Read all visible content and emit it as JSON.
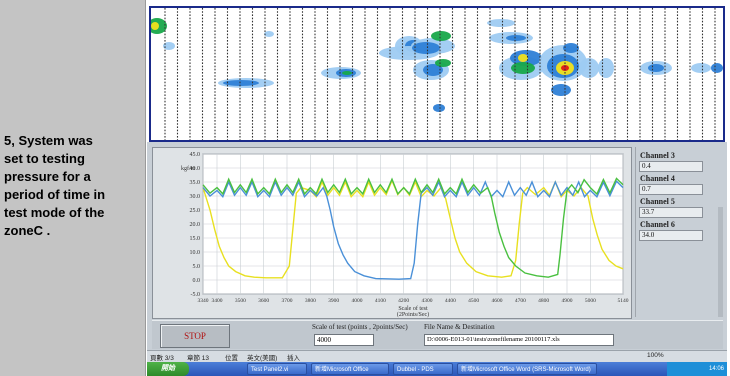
{
  "caption": {
    "lines": [
      "5, System was",
      "set to testing",
      "pressure for a",
      "period of time in",
      "test mode of the",
      "zoneC ."
    ]
  },
  "heatmap": {
    "colors": {
      "low": "#9ecbf2",
      "mid": "#2e7fd6",
      "high": "#18a84a",
      "peak_yellow": "#f2e21c",
      "peak_red": "#e01818",
      "border": "#1a2a8a"
    }
  },
  "chart_data": {
    "type": "line",
    "title": "",
    "ylabel": "kgf/m",
    "xlabel": "Scale of test",
    "xlabel_sub": "(2Points/Sec)",
    "xlim": [
      3340,
      5140
    ],
    "ylim": [
      -5,
      45
    ],
    "x_ticks": [
      3340,
      3400,
      3500,
      3600,
      3700,
      3800,
      3900,
      4000,
      4100,
      4200,
      4300,
      4400,
      4500,
      4600,
      4700,
      4800,
      4900,
      5000,
      5140
    ],
    "y_ticks": [
      -5.0,
      0.0,
      5.0,
      10.0,
      15.0,
      20.0,
      25.0,
      30.0,
      35.0,
      40.0,
      45.0
    ],
    "grid": true,
    "series": [
      {
        "color": "#e8e020",
        "points": [
          [
            3340,
            33
          ],
          [
            3355,
            29
          ],
          [
            3370,
            25
          ],
          [
            3390,
            18
          ],
          [
            3410,
            12
          ],
          [
            3430,
            8
          ],
          [
            3450,
            5
          ],
          [
            3480,
            3
          ],
          [
            3520,
            1.5
          ],
          [
            3560,
            1
          ],
          [
            3610,
            0.8
          ],
          [
            3680,
            0.8
          ],
          [
            3710,
            5
          ],
          [
            3725,
            18
          ],
          [
            3740,
            31
          ],
          [
            3760,
            33
          ],
          [
            3800,
            32
          ],
          [
            3900,
            33
          ],
          [
            4000,
            32
          ],
          [
            4100,
            33
          ],
          [
            4200,
            33
          ],
          [
            4300,
            32
          ],
          [
            4360,
            33
          ],
          [
            4380,
            29
          ],
          [
            4400,
            22
          ],
          [
            4420,
            15
          ],
          [
            4440,
            10
          ],
          [
            4470,
            6
          ],
          [
            4510,
            3
          ],
          [
            4560,
            1.5
          ],
          [
            4620,
            1
          ],
          [
            4660,
            1.5
          ],
          [
            4680,
            7
          ],
          [
            4695,
            20
          ],
          [
            4710,
            31
          ],
          [
            4730,
            33
          ],
          [
            4800,
            33
          ],
          [
            4900,
            32
          ],
          [
            4960,
            33
          ],
          [
            4990,
            30
          ],
          [
            5010,
            22
          ],
          [
            5030,
            16
          ],
          [
            5050,
            11
          ],
          [
            5080,
            7
          ],
          [
            5110,
            5
          ],
          [
            5140,
            4
          ]
        ]
      },
      {
        "color": "#4a90d8",
        "points": [
          [
            3340,
            33
          ],
          [
            3400,
            32
          ],
          [
            3500,
            33
          ],
          [
            3600,
            32
          ],
          [
            3700,
            33
          ],
          [
            3800,
            32
          ],
          [
            3855,
            33
          ],
          [
            3870,
            30
          ],
          [
            3885,
            25
          ],
          [
            3900,
            19
          ],
          [
            3920,
            13
          ],
          [
            3940,
            9
          ],
          [
            3960,
            6
          ],
          [
            3990,
            3
          ],
          [
            4030,
            1.5
          ],
          [
            4080,
            0.5
          ],
          [
            4180,
            0.3
          ],
          [
            4230,
            0.5
          ],
          [
            4245,
            6
          ],
          [
            4260,
            20
          ],
          [
            4275,
            31
          ],
          [
            4300,
            33
          ],
          [
            4400,
            32
          ],
          [
            4500,
            33
          ],
          [
            4600,
            32
          ],
          [
            4700,
            33
          ],
          [
            4800,
            32
          ],
          [
            4900,
            33
          ],
          [
            5000,
            32
          ],
          [
            5140,
            33
          ]
        ]
      },
      {
        "color": "#4ac040",
        "points": [
          [
            3340,
            34
          ],
          [
            3400,
            33
          ],
          [
            3500,
            34
          ],
          [
            3600,
            33
          ],
          [
            3700,
            34
          ],
          [
            3800,
            33
          ],
          [
            3900,
            34
          ],
          [
            4000,
            33
          ],
          [
            4100,
            34
          ],
          [
            4200,
            33
          ],
          [
            4300,
            34
          ],
          [
            4400,
            33
          ],
          [
            4500,
            34
          ],
          [
            4560,
            33
          ],
          [
            4575,
            30
          ],
          [
            4590,
            24
          ],
          [
            4610,
            17
          ],
          [
            4630,
            12
          ],
          [
            4650,
            8
          ],
          [
            4680,
            5
          ],
          [
            4720,
            2.5
          ],
          [
            4770,
            1.5
          ],
          [
            4820,
            1
          ],
          [
            4860,
            2
          ],
          [
            4870,
            9
          ],
          [
            4885,
            22
          ],
          [
            4900,
            32
          ],
          [
            4920,
            34
          ],
          [
            5000,
            33
          ],
          [
            5140,
            34
          ]
        ]
      }
    ]
  },
  "channels": [
    {
      "label": "Channel 3",
      "value": "0.4"
    },
    {
      "label": "Channel 4",
      "value": "0.7"
    },
    {
      "label": "Channel 5",
      "value": "33.7"
    },
    {
      "label": "Channel 6",
      "value": "34.0"
    }
  ],
  "controls": {
    "stop_label": "STOP",
    "scale_label": "Scale of test (points , 2points/Sec)",
    "scale_value": "4000",
    "filename_label": "File Name & Destination",
    "filename_value": "D:\\0006-E013-01\\tests\\zonefilename 20100117.xls"
  },
  "statusbar": {
    "page": "頁數 3/3",
    "section": "章節 13",
    "position": "位置",
    "mode": "英文(美國)",
    "insert": "插入"
  },
  "taskbar": {
    "start": "開始",
    "buttons": [
      "Test Panel2.vi",
      "新增Microsoft Office",
      "Dubbel - PDS",
      "新增Microsoft Office Word (SRS-Microsoft Word)"
    ],
    "clock": "14:06"
  },
  "zoom": "100%"
}
